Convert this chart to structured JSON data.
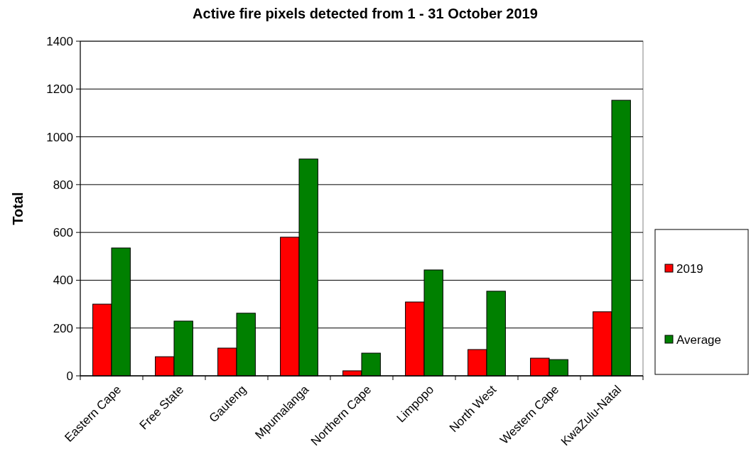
{
  "chart_data": {
    "type": "bar",
    "title": "Active fire pixels detected from 1 - 31 October 2019",
    "ylabel": "Total",
    "categories": [
      "Eastern Cape",
      "Free State",
      "Gauteng",
      "Mpumalanga",
      "Northern Cape",
      "Limpopo",
      "North West",
      "Western Cape",
      "KwaZulu-Natal"
    ],
    "series": [
      {
        "name": "2019",
        "color": "#ff0000",
        "values": [
          300,
          80,
          116,
          580,
          21,
          309,
          110,
          74,
          268
        ]
      },
      {
        "name": "Average",
        "color": "#008000",
        "values": [
          535,
          229,
          262,
          907,
          95,
          443,
          354,
          68,
          1153
        ]
      }
    ],
    "ylim": [
      0,
      1400
    ],
    "yticks": [
      0,
      200,
      400,
      600,
      800,
      1000,
      1200,
      1400
    ],
    "grid": "y",
    "legend": "right"
  }
}
